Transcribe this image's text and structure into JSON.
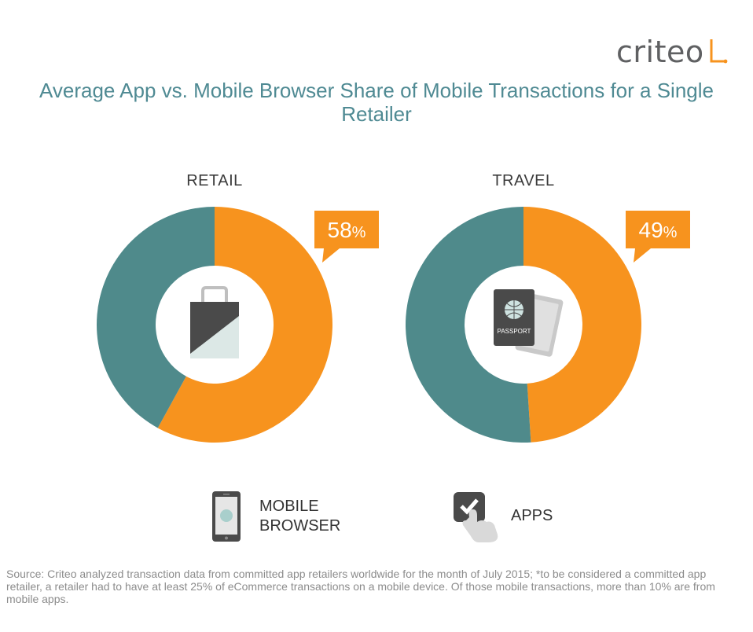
{
  "logo": {
    "text": "criteo"
  },
  "title": "Average App vs. Mobile Browser Share of Mobile Transactions for a Single Retailer",
  "colors": {
    "apps": "#f7931e",
    "mobile_browser": "#4f8a8b",
    "title": "#4f8a93"
  },
  "chart_data": [
    {
      "type": "pie",
      "title": "RETAIL",
      "slices": [
        {
          "name": "APPS",
          "value": 58
        },
        {
          "name": "MOBILE BROWSER",
          "value": 42
        }
      ],
      "label_number": "58",
      "label_unit": "%",
      "icon": "shopping-bag-icon"
    },
    {
      "type": "pie",
      "title": "TRAVEL",
      "slices": [
        {
          "name": "APPS",
          "value": 49
        },
        {
          "name": "MOBILE BROWSER",
          "value": 51
        }
      ],
      "label_number": "49",
      "label_unit": "%",
      "icon": "passport-icon",
      "icon_text": "PASSPORT"
    }
  ],
  "legend": [
    {
      "name": "MOBILE BROWSER",
      "line1": "MOBILE",
      "line2": "BROWSER",
      "icon": "smartphone-icon"
    },
    {
      "name": "APPS",
      "line1": "APPS",
      "icon": "tap-app-icon"
    }
  ],
  "source": "Source: Criteo analyzed transaction data from committed app retailers worldwide for the month of July 2015; *to be considered a committed app retailer, a retailer had to have at least 25% of eCommerce transactions on a mobile device. Of those mobile transactions, more than 10% are from mobile apps."
}
